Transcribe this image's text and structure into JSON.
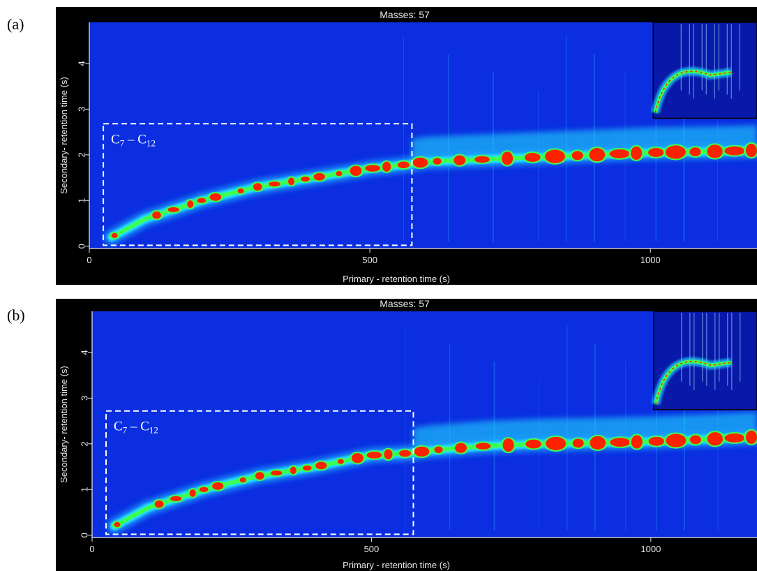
{
  "chart_data": [
    {
      "panel": "(a)",
      "type": "heatmap",
      "title": "Masses: 57",
      "xlabel": "Primary - retention time (s)",
      "ylabel": "Secondary- retention time (s)",
      "xlim": [
        0,
        1190
      ],
      "ylim": [
        -0.05,
        4.9
      ],
      "xticks": [
        0,
        500,
        1000
      ],
      "yticks": [
        0,
        1,
        2,
        3,
        4
      ],
      "box": {
        "label_main": "C",
        "label_sub1": "7",
        "label_mid": " – C",
        "label_sub2": "12",
        "x": [
          25,
          575
        ],
        "y": [
          0.02,
          2.68
        ]
      },
      "inset": {
        "x": [
          1005,
          1190
        ],
        "y": [
          2.8,
          4.9
        ]
      },
      "ridge": [
        [
          40,
          0.2
        ],
        [
          100,
          0.6
        ],
        [
          200,
          1.0
        ],
        [
          300,
          1.3
        ],
        [
          400,
          1.5
        ],
        [
          500,
          1.7
        ],
        [
          575,
          1.8
        ],
        [
          600,
          1.85
        ],
        [
          700,
          1.9
        ],
        [
          800,
          1.95
        ],
        [
          900,
          2.0
        ],
        [
          1000,
          2.05
        ],
        [
          1100,
          2.07
        ],
        [
          1190,
          2.1
        ]
      ],
      "colors": {
        "background": "#0a2ee0",
        "frame": "#000000",
        "low": "#1ea0ff",
        "mid": "#22e6ff",
        "high": "#3cff50",
        "peak": "#ff2000",
        "peak_core": "#ff1a00"
      }
    },
    {
      "panel": "(b)",
      "type": "heatmap",
      "title": "Masses: 57",
      "xlabel": "Primary - retention time (s)",
      "ylabel": "Secondary- retention time (s)",
      "xlim": [
        0,
        1190
      ],
      "ylim": [
        -0.05,
        4.9
      ],
      "xticks": [
        0,
        500,
        1000
      ],
      "yticks": [
        0,
        1,
        2,
        3,
        4
      ],
      "box": {
        "label_main": "C",
        "label_sub1": "7",
        "label_mid": " – C",
        "label_sub2": "12",
        "x": [
          25,
          575
        ],
        "y": [
          0.02,
          2.72
        ]
      },
      "inset": {
        "x": [
          1005,
          1190
        ],
        "y": [
          2.75,
          4.9
        ]
      },
      "ridge": [
        [
          40,
          0.2
        ],
        [
          100,
          0.6
        ],
        [
          200,
          1.0
        ],
        [
          300,
          1.3
        ],
        [
          400,
          1.5
        ],
        [
          500,
          1.75
        ],
        [
          575,
          1.8
        ],
        [
          600,
          1.85
        ],
        [
          700,
          1.95
        ],
        [
          800,
          2.0
        ],
        [
          900,
          2.02
        ],
        [
          1000,
          2.05
        ],
        [
          1100,
          2.1
        ],
        [
          1190,
          2.15
        ]
      ],
      "colors": {
        "background": "#0a2ee0",
        "frame": "#000000",
        "low": "#1ea0ff",
        "mid": "#22e6ff",
        "high": "#3cff50",
        "peak": "#ff2000",
        "peak_core": "#ff1a00"
      }
    }
  ]
}
